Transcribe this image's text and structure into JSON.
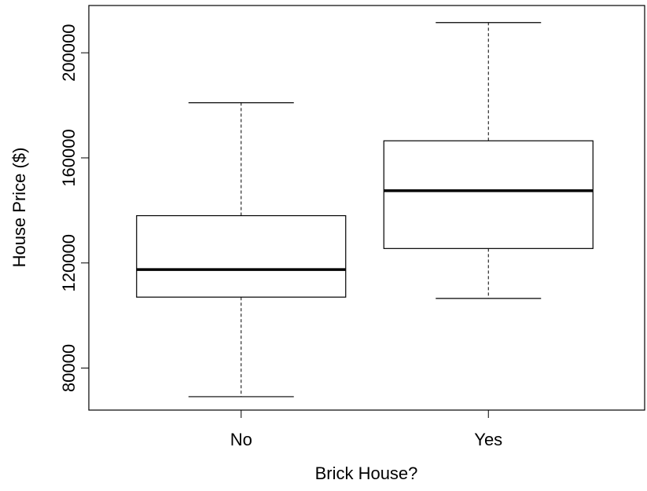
{
  "chart_data": {
    "type": "boxplot",
    "xlabel": "Brick House?",
    "ylabel": "House Price ($)",
    "ylim": [
      64000,
      218000
    ],
    "yticks": [
      80000,
      120000,
      160000,
      200000
    ],
    "categories": [
      "No",
      "Yes"
    ],
    "boxes": [
      {
        "category": "No",
        "min": 69100,
        "q1": 107000,
        "median": 117500,
        "q3": 138000,
        "max": 181000
      },
      {
        "category": "Yes",
        "min": 106500,
        "q1": 125500,
        "median": 147500,
        "q3": 166500,
        "max": 211500
      }
    ],
    "grid": false,
    "legend": "none",
    "colors": {
      "box_fill": "#ffffff",
      "stroke": "#000000"
    }
  }
}
